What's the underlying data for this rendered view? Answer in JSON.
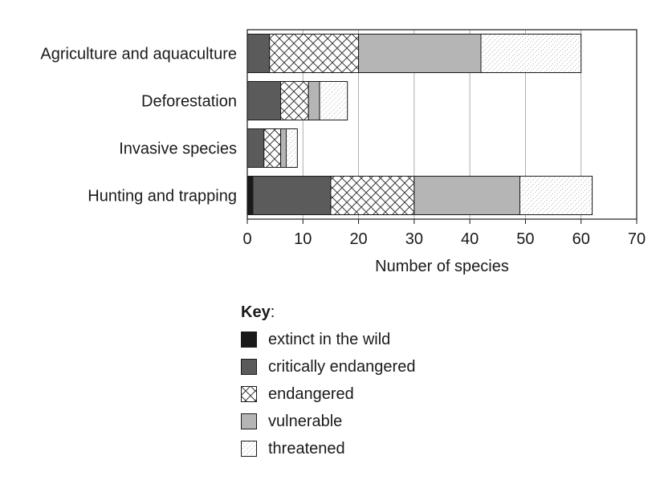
{
  "chart_data": {
    "type": "bar",
    "orientation": "horizontal",
    "stacked": true,
    "categories": [
      "Agriculture and aquaculture",
      "Deforestation",
      "Invasive species",
      "Hunting and trapping"
    ],
    "series": [
      {
        "name": "extinct in the wild",
        "values": [
          0,
          0,
          0,
          1
        ],
        "color": "#1a1a1a",
        "pattern": "solid"
      },
      {
        "name": "critically endangered",
        "values": [
          4,
          6,
          3,
          14
        ],
        "color": "#5b5b5b",
        "pattern": "solid"
      },
      {
        "name": "endangered",
        "values": [
          16,
          5,
          3,
          15
        ],
        "color": "#ffffff",
        "pattern": "crosshatch"
      },
      {
        "name": "vulnerable",
        "values": [
          22,
          2,
          1,
          19
        ],
        "color": "#b5b5b5",
        "pattern": "solid"
      },
      {
        "name": "threatened",
        "values": [
          18,
          5,
          2,
          13
        ],
        "color": "#ffffff",
        "pattern": "dots"
      }
    ],
    "xlabel": "Number of species",
    "ylabel": "",
    "xlim": [
      0,
      70
    ],
    "xticks": [
      0,
      10,
      20,
      30,
      40,
      50,
      60,
      70
    ],
    "grid": "vertical",
    "legend": {
      "title": "Key",
      "title_suffix": ":",
      "placement": "bottom"
    }
  }
}
